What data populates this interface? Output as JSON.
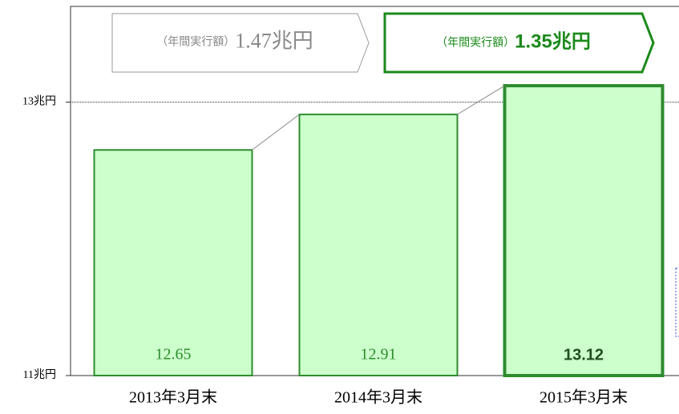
{
  "chart_data": {
    "type": "bar",
    "categories": [
      "2013年3月末",
      "2014年3月末",
      "2015年3月末"
    ],
    "values": [
      12.65,
      12.91,
      13.12
    ],
    "color": "#ccffcc",
    "edge_color": "#2e8b2e",
    "highlight_index": 2,
    "ylim": [
      11,
      13.7
    ],
    "yticks": [
      {
        "value": 11,
        "label": "11兆円"
      },
      {
        "value": 13,
        "label": "13兆円"
      }
    ],
    "grid": true,
    "annotations": [
      {
        "prefix": "（年間実行額）",
        "text": "1.47兆円"
      },
      {
        "prefix": "（年間実行額）",
        "text": "1.35兆円"
      }
    ]
  }
}
